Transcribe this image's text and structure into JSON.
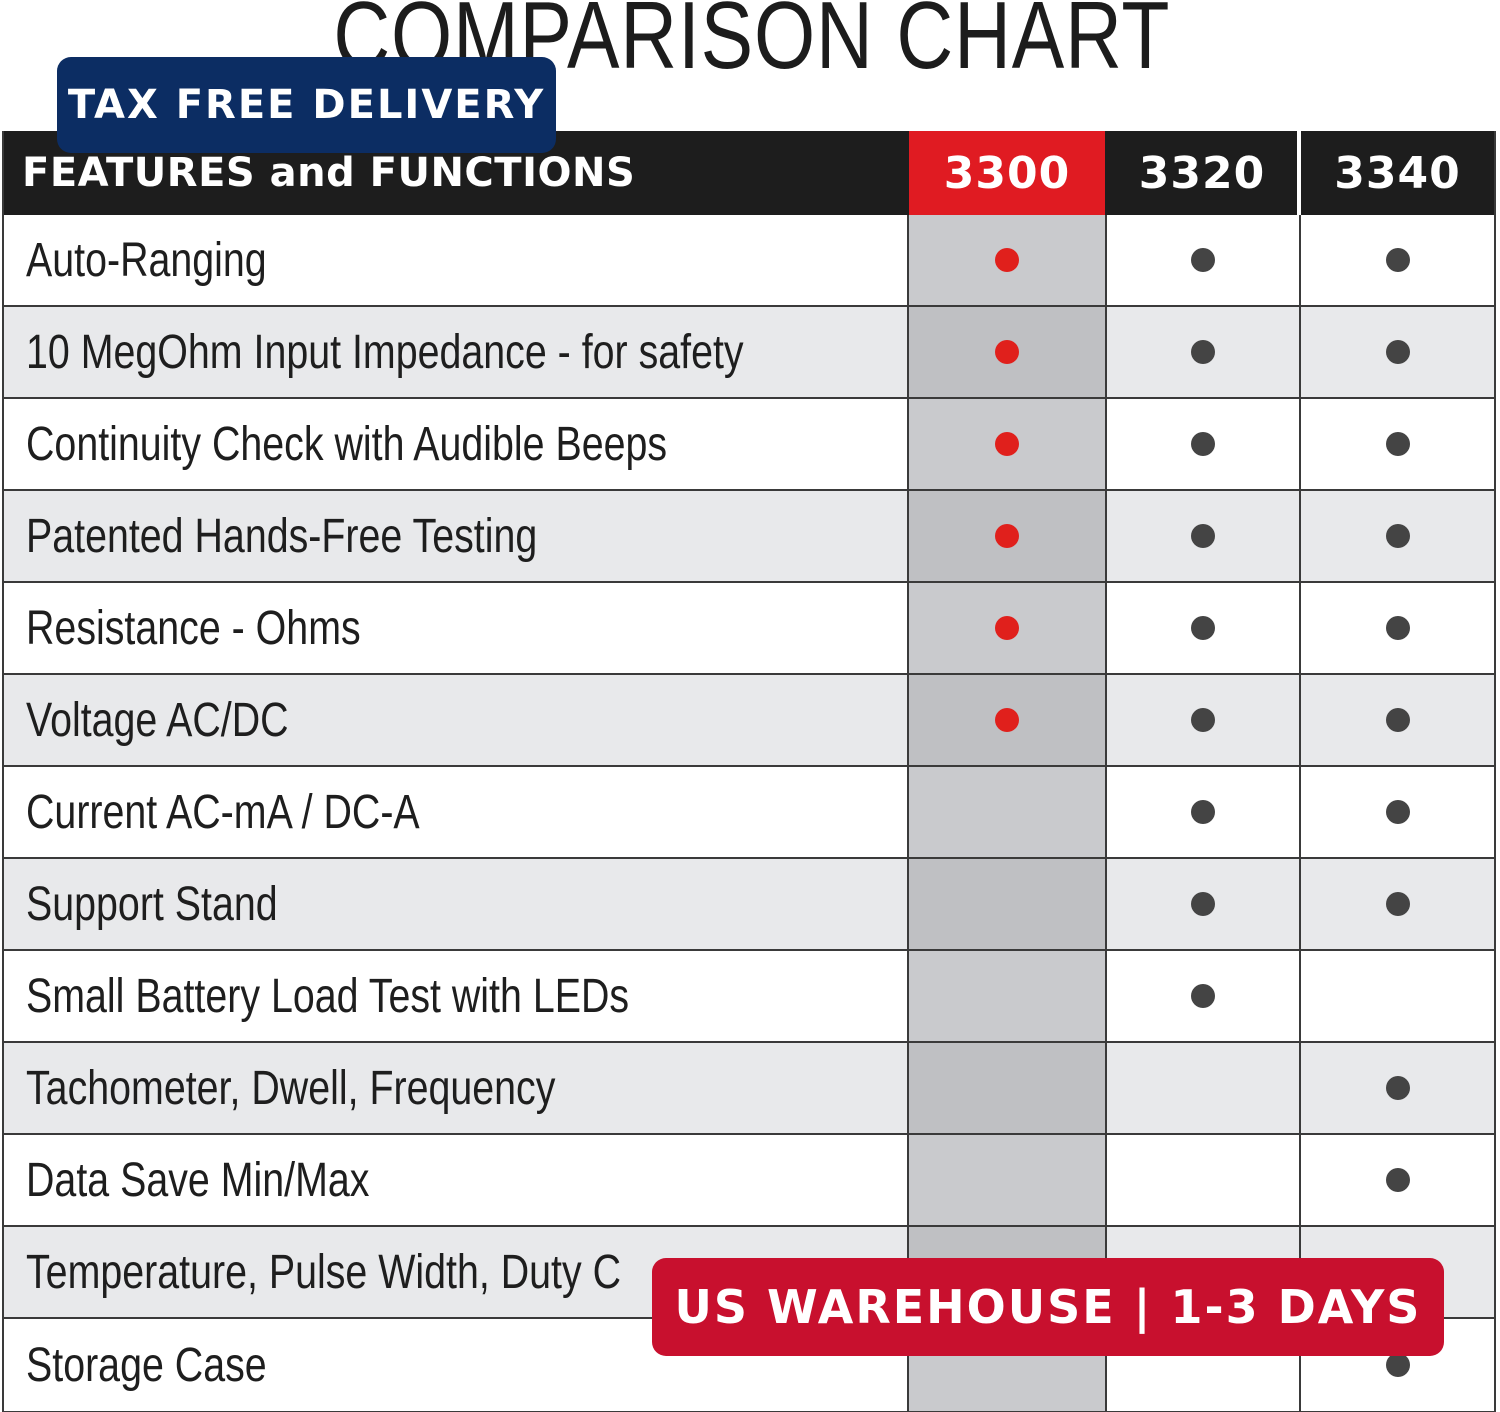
{
  "title": "COMPARISON CHART",
  "header": {
    "feature_label": "FEATURES and FUNCTIONS",
    "models": [
      "3300",
      "3320",
      "3340"
    ]
  },
  "colors": {
    "highlight_model": "#e01b22",
    "header_bg": "#1d1d1d",
    "tax_banner": "#0c2d63",
    "us_banner": "#c8102e"
  },
  "rows": [
    {
      "feature": "Auto-Ranging",
      "m3300": true,
      "m3320": true,
      "m3340": true
    },
    {
      "feature": "10 MegOhm Input Impedance - for safety",
      "m3300": true,
      "m3320": true,
      "m3340": true
    },
    {
      "feature": "Continuity Check with Audible Beeps",
      "m3300": true,
      "m3320": true,
      "m3340": true
    },
    {
      "feature": "Patented Hands-Free Testing",
      "m3300": true,
      "m3320": true,
      "m3340": true
    },
    {
      "feature": "Resistance - Ohms",
      "m3300": true,
      "m3320": true,
      "m3340": true
    },
    {
      "feature": "Voltage AC/DC",
      "m3300": true,
      "m3320": true,
      "m3340": true
    },
    {
      "feature": "Current AC-mA / DC-A",
      "m3300": false,
      "m3320": true,
      "m3340": true
    },
    {
      "feature": "Support Stand",
      "m3300": false,
      "m3320": true,
      "m3340": true
    },
    {
      "feature": "Small Battery Load Test with LEDs",
      "m3300": false,
      "m3320": true,
      "m3340": false
    },
    {
      "feature": "Tachometer, Dwell, Frequency",
      "m3300": false,
      "m3320": false,
      "m3340": true
    },
    {
      "feature": "Data Save Min/Max",
      "m3300": false,
      "m3320": false,
      "m3340": true
    },
    {
      "feature": "Temperature, Pulse Width, Duty C",
      "m3300": false,
      "m3320": false,
      "m3340": false
    },
    {
      "feature": "Storage Case",
      "m3300": false,
      "m3320": false,
      "m3340": true
    }
  ],
  "banners": {
    "tax": "TAX FREE DELIVERY",
    "us": "US WAREHOUSE | 1-3 DAYS"
  }
}
